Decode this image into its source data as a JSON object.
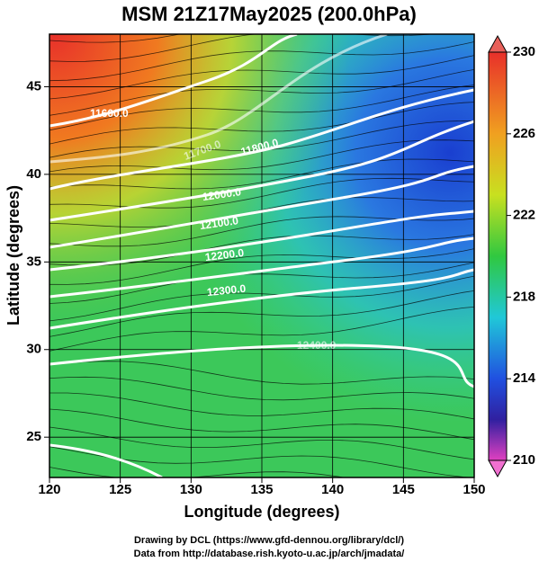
{
  "title": "MSM 21Z17May2025 (200.0hPa)",
  "map": {
    "xlabel": "Longitude (degrees)",
    "ylabel": "Latitude  (degrees)",
    "xlim": [
      120,
      150
    ],
    "ylim": [
      22.7,
      48
    ],
    "xticks": [
      120,
      125,
      130,
      135,
      140,
      145,
      150
    ],
    "yticks": [
      25,
      30,
      35,
      40,
      45
    ],
    "contour_labels": [
      "11600.0",
      "11700.0",
      "11800.0",
      "12000.0",
      "12100.0",
      "12200.0",
      "12300.0",
      "12400.0"
    ]
  },
  "colorbar": {
    "lim": [
      210,
      230
    ],
    "ticks": [
      210,
      214,
      218,
      222,
      226,
      230
    ]
  },
  "credits": [
    "Drawing by DCL (https://www.gfd-dennou.org/library/dcl/)",
    "Data from http://database.rish.kyoto-u.ac.jp/arch/jmadata/"
  ]
}
